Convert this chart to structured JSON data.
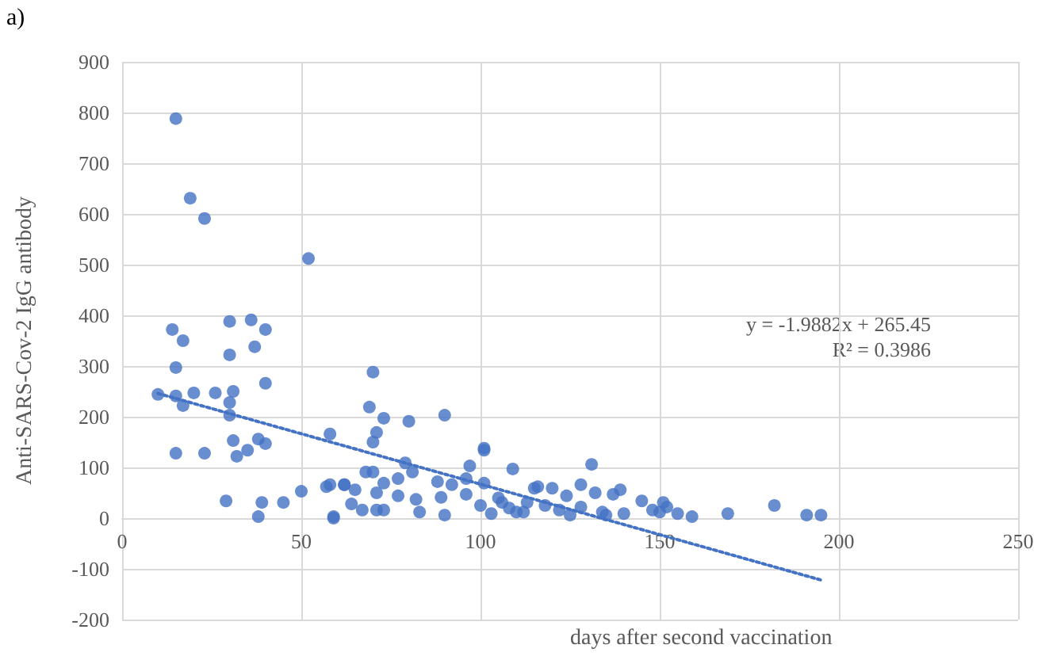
{
  "chart_data": {
    "type": "scatter",
    "title": "a)",
    "xlabel": "days after second vaccination",
    "ylabel": "Anti-SARS-Cov-2 IgG antibody",
    "annotations": [
      "y = -1.9882x + 265.45",
      "R² = 0.3986"
    ],
    "xlim": [
      0,
      250
    ],
    "xticks": [
      0,
      50,
      100,
      150,
      200,
      250
    ],
    "ylim": [
      -200,
      900
    ],
    "yticks": [
      -200,
      -100,
      0,
      100,
      200,
      300,
      400,
      500,
      600,
      700,
      800,
      900
    ],
    "grid": true,
    "marker": "circle",
    "series": [
      {
        "color": "#4472c4",
        "x": [
          15,
          19,
          23,
          52,
          14,
          17,
          30,
          36,
          40,
          30,
          37,
          15,
          40,
          10,
          15,
          17,
          20,
          26,
          31,
          30,
          30,
          58,
          31,
          38,
          40,
          35,
          32,
          15,
          23,
          29,
          39,
          45,
          38,
          50,
          57,
          58,
          62,
          59,
          70,
          69,
          73,
          80,
          90,
          71,
          70,
          79,
          101,
          97,
          109,
          68,
          70,
          81,
          88,
          92,
          96,
          62,
          65,
          73,
          77,
          71,
          77,
          64,
          67,
          71,
          73,
          59,
          82,
          83,
          89,
          90,
          96,
          101,
          106,
          115,
          112,
          131,
          116,
          120,
          128,
          139,
          137,
          145,
          151,
          152,
          155,
          159,
          169,
          182,
          191,
          195,
          132,
          124,
          113,
          122,
          134,
          140,
          150,
          110,
          100,
          103,
          105,
          108,
          118,
          125,
          128,
          135,
          148,
          101
        ],
        "values": [
          788,
          631,
          591,
          512,
          372,
          350,
          388,
          391,
          372,
          322,
          338,
          297,
          266,
          244,
          241,
          222,
          247,
          247,
          250,
          228,
          203,
          166,
          153,
          156,
          147,
          134,
          122,
          128,
          128,
          34,
          31,
          31,
          3,
          53,
          62,
          66,
          66,
          3,
          288,
          219,
          197,
          191,
          203,
          169,
          150,
          109,
          134,
          103,
          97,
          91,
          91,
          91,
          72,
          66,
          78,
          66,
          56,
          69,
          78,
          50,
          44,
          28,
          16,
          16,
          16,
          0,
          37,
          12,
          41,
          6,
          47,
          69,
          31,
          59,
          12,
          106,
          62,
          59,
          66,
          56,
          47,
          34,
          31,
          22,
          9,
          3,
          9,
          25,
          6,
          6,
          50,
          44,
          31,
          16,
          12,
          9,
          12,
          12,
          25,
          9,
          40,
          20,
          25,
          6,
          22,
          6,
          16,
          138
        ]
      },
      {
        "type": "line",
        "color": "#4472c4",
        "line_style": "dotted",
        "marker": "none",
        "x": [
          10,
          195
        ],
        "values": [
          246,
          -122
        ]
      }
    ]
  }
}
